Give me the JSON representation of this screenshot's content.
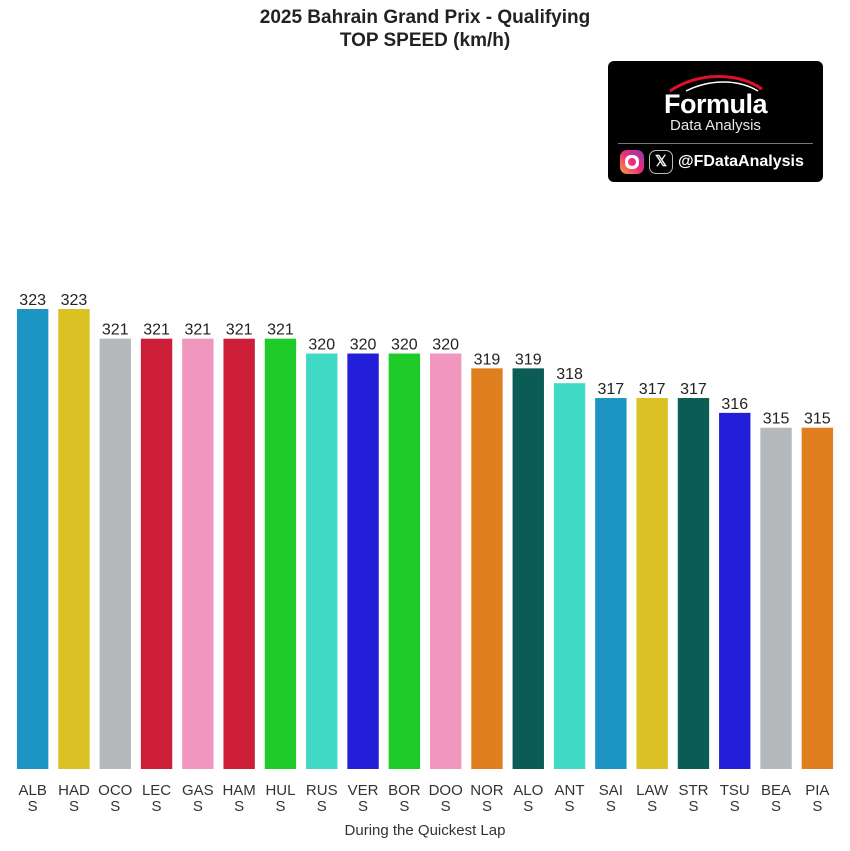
{
  "chart_data": {
    "type": "bar",
    "title": "2025 Bahrain Grand Prix - Qualifying",
    "subtitle": "TOP SPEED (km/h)",
    "xlabel": "During the Quickest Lap",
    "ylabel": "",
    "ylim": [
      292,
      323
    ],
    "grid": false,
    "legend": "none",
    "categories": [
      "ALB\nS",
      "HAD\nS",
      "OCO\nS",
      "LEC\nS",
      "GAS\nS",
      "HAM\nS",
      "HUL\nS",
      "RUS\nS",
      "VER\nS",
      "BOR\nS",
      "DOO\nS",
      "NOR\nS",
      "ALO\nS",
      "ANT\nS",
      "SAI\nS",
      "LAW\nS",
      "STR\nS",
      "TSU\nS",
      "BEA\nS",
      "PIA\nS"
    ],
    "values": [
      323,
      323,
      321,
      321,
      321,
      321,
      321,
      320,
      320,
      320,
      320,
      319,
      319,
      318,
      317,
      317,
      317,
      316,
      315,
      315
    ],
    "colors": [
      "#1c95c4",
      "#dbc124",
      "#b5b9bc",
      "#cc1e37",
      "#f196be",
      "#cc1e37",
      "#1ecb28",
      "#40d9c3",
      "#231ed8",
      "#1ecb28",
      "#f196be",
      "#e07f20",
      "#0b5c55",
      "#40d9c3",
      "#1c95c4",
      "#dbc124",
      "#0b5c55",
      "#231ed8",
      "#b5b9bc",
      "#e07f20"
    ]
  },
  "branding": {
    "name": "Formula",
    "subtitle": "Data Analysis",
    "handle": "@FDataAnalysis",
    "x_glyph": "𝕏",
    "icons": [
      "instagram-icon",
      "x-icon"
    ],
    "swoosh_color": "#e0102a"
  }
}
